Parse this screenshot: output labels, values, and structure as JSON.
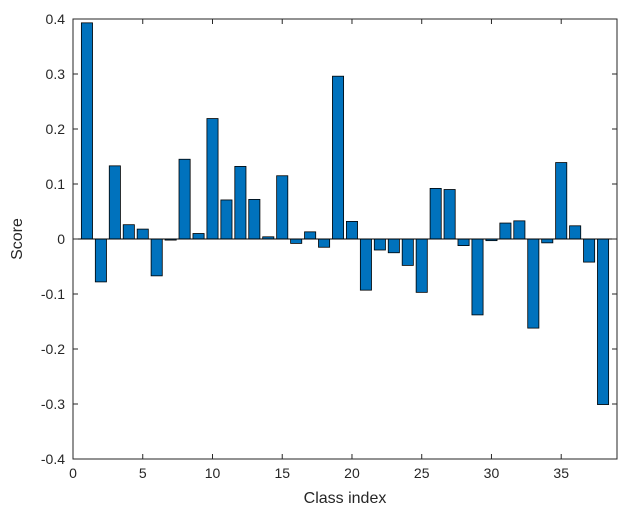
{
  "chart_data": {
    "type": "bar",
    "title": "",
    "xlabel": "Class index",
    "ylabel": "Score",
    "xlim": [
      0,
      39
    ],
    "ylim": [
      -0.4,
      0.4
    ],
    "xticks": [
      0,
      5,
      10,
      15,
      20,
      25,
      30,
      35
    ],
    "yticks": [
      -0.4,
      -0.3,
      -0.2,
      -0.1,
      0,
      0.1,
      0.2,
      0.3,
      0.4
    ],
    "ytick_labels": [
      "-0.4",
      "-0.3",
      "-0.2",
      "-0.1",
      "0",
      "0.1",
      "0.2",
      "0.3",
      "0.4"
    ],
    "grid": false,
    "bar_color": "#0072BD",
    "x": [
      1,
      2,
      3,
      4,
      5,
      6,
      7,
      8,
      9,
      10,
      11,
      12,
      13,
      14,
      15,
      16,
      17,
      18,
      19,
      20,
      21,
      22,
      23,
      24,
      25,
      26,
      27,
      28,
      29,
      30,
      31,
      32,
      33,
      34,
      35,
      36,
      37,
      38
    ],
    "values": [
      0.393,
      -0.078,
      0.133,
      0.026,
      0.018,
      -0.067,
      -0.002,
      0.145,
      0.01,
      0.219,
      0.071,
      0.132,
      0.072,
      0.004,
      0.115,
      -0.008,
      0.013,
      -0.015,
      0.296,
      0.032,
      -0.093,
      -0.02,
      -0.025,
      -0.048,
      -0.097,
      0.092,
      0.09,
      -0.012,
      -0.138,
      -0.003,
      0.029,
      0.033,
      -0.162,
      -0.007,
      0.139,
      0.024,
      -0.042,
      -0.301
    ]
  }
}
